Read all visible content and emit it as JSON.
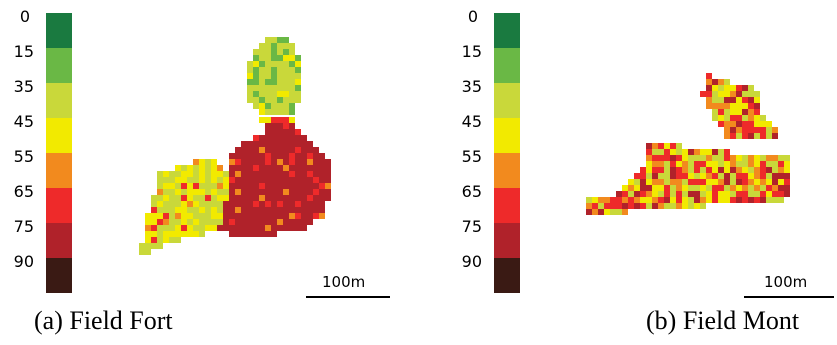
{
  "legend": {
    "levels": [
      {
        "label": "0",
        "color": "#1a7a40"
      },
      {
        "label": "15",
        "color": "#6ab845"
      },
      {
        "label": "35",
        "color": "#c9d83a"
      },
      {
        "label": "45",
        "color": "#f2ea00"
      },
      {
        "label": "55",
        "color": "#f28a1e"
      },
      {
        "label": "65",
        "color": "#ee2a2a"
      },
      {
        "label": "75",
        "color": "#b0222a"
      },
      {
        "label": "90",
        "color": "#3a1a14"
      }
    ]
  },
  "panels": [
    {
      "caption": "(a) Field Fort",
      "scale_label": "100m"
    },
    {
      "caption": "(b) Field Mont",
      "scale_label": "100m"
    }
  ]
}
